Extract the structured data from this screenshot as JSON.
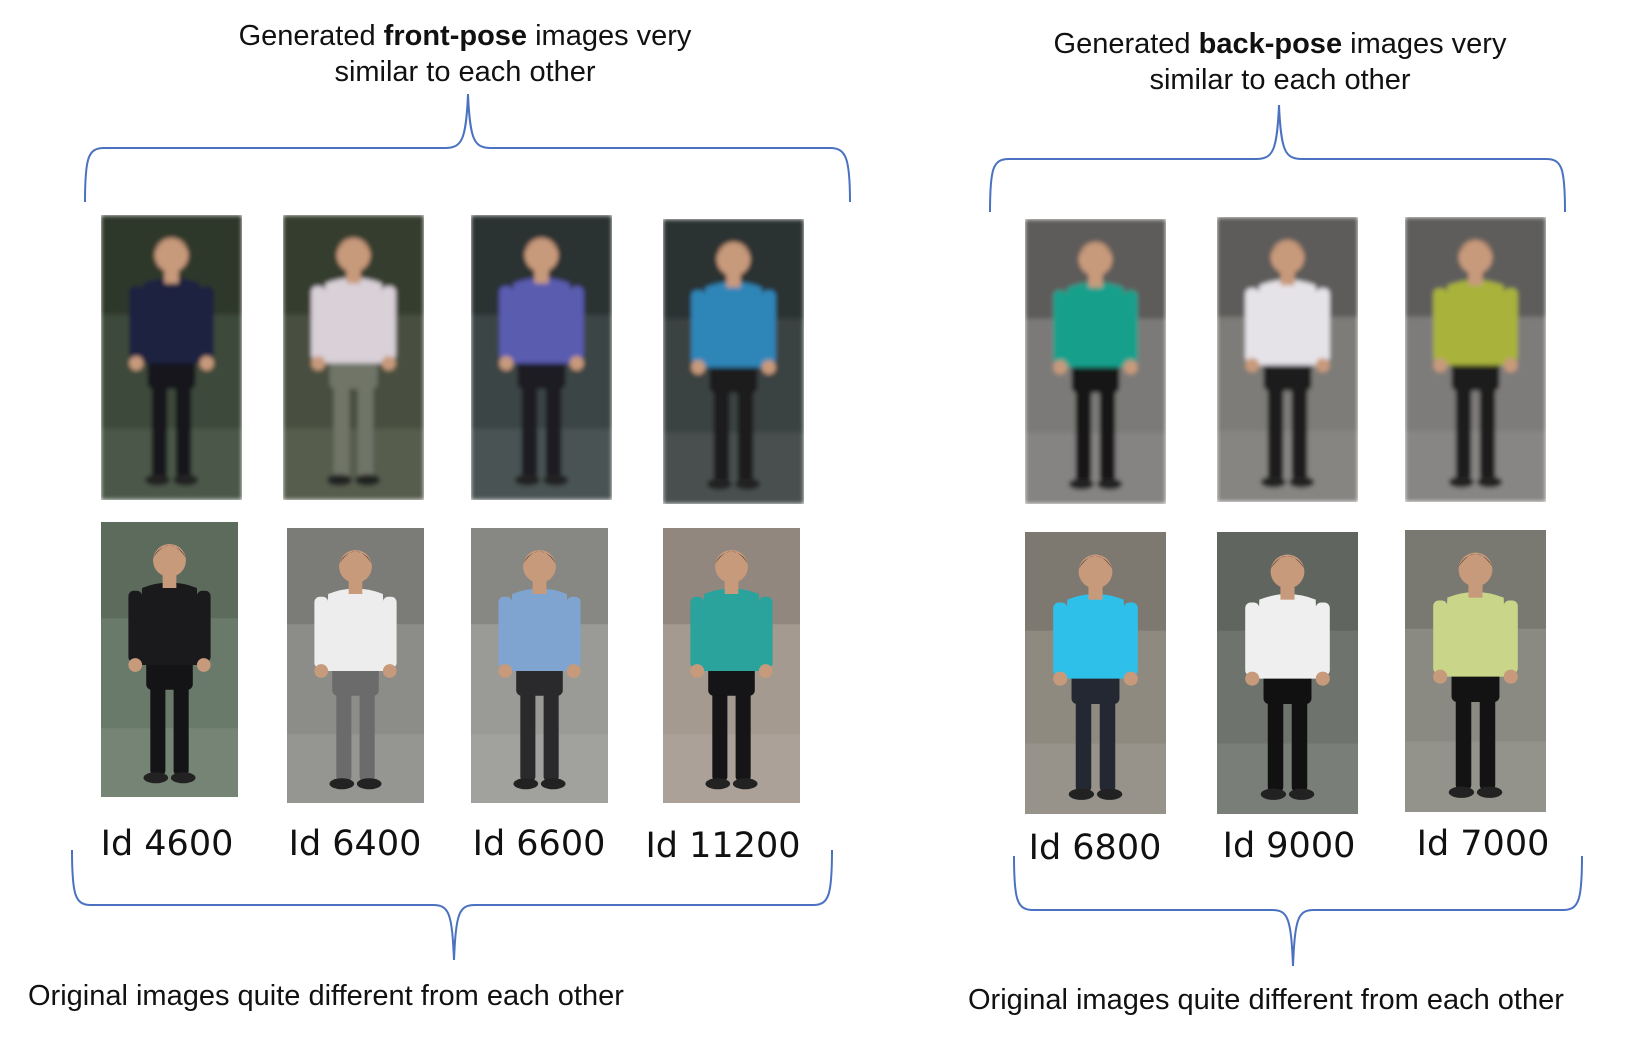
{
  "left_panel": {
    "top_caption": {
      "prefix": "Generated ",
      "bold": "front-pose",
      "suffix": " images very",
      "line2": "similar to each other"
    },
    "bottom_caption": "Original images quite different from each other",
    "ids": [
      "Id 4600",
      "Id 6400",
      "Id 6600",
      "Id 11200"
    ],
    "generated_images": [
      {
        "shirt": "#1e2140",
        "pants": "#15151a",
        "bg": "#3c4a3a"
      },
      {
        "shirt": "#d9d0d8",
        "pants": "#6f7468",
        "bg": "#48503f"
      },
      {
        "shirt": "#5a5cb0",
        "pants": "#1d1d22",
        "bg": "#3a4444"
      },
      {
        "shirt": "#2f86b8",
        "pants": "#1a1a1e",
        "bg": "#3a4242"
      }
    ],
    "original_images": [
      {
        "shirt": "#1a1a1c",
        "pants": "#141416",
        "bg": "#6a7a6a"
      },
      {
        "shirt": "#ededee",
        "pants": "#6b6b6b",
        "bg": "#8c8c88"
      },
      {
        "shirt": "#7fa4cf",
        "pants": "#2a2a2c",
        "bg": "#9a9a96"
      },
      {
        "shirt": "#2aa39c",
        "pants": "#151517",
        "bg": "#a59a90"
      }
    ]
  },
  "right_panel": {
    "top_caption": {
      "prefix": "Generated ",
      "bold": "back-pose",
      "suffix": " images very",
      "line2": "similar to each other"
    },
    "bottom_caption": "Original images quite different from each other",
    "ids": [
      "Id 6800",
      "Id 9000",
      "Id 7000"
    ],
    "generated_images": [
      {
        "shirt": "#13a08c",
        "pants": "#141414",
        "bg": "#7c7a78"
      },
      {
        "shirt": "#e6e3e8",
        "pants": "#1a1a1a",
        "bg": "#7d7b78"
      },
      {
        "shirt": "#a9b23a",
        "pants": "#1b1b1b",
        "bg": "#7e7c7a"
      }
    ],
    "original_images": [
      {
        "shirt": "#2fc0ea",
        "pants": "#232833",
        "bg": "#8f8a80"
      },
      {
        "shirt": "#f0eff0",
        "pants": "#111111",
        "bg": "#6f736d"
      },
      {
        "shirt": "#c9d68a",
        "pants": "#131313",
        "bg": "#8a8a82"
      }
    ]
  },
  "colors": {
    "brace": "#4a72c0",
    "text": "#111111"
  }
}
